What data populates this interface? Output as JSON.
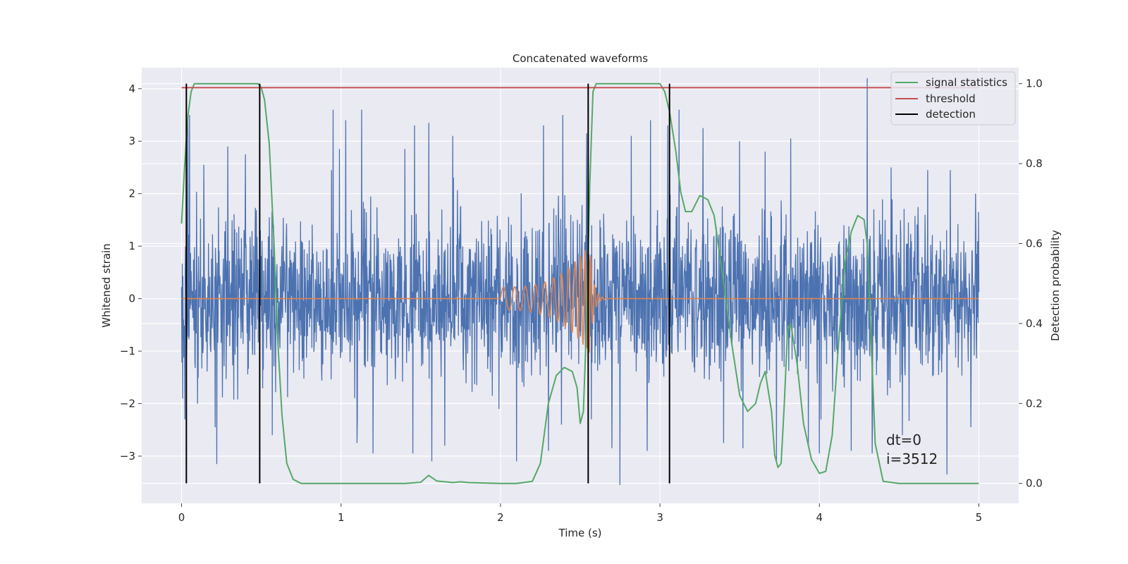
{
  "chart_data": {
    "type": "line",
    "title": "Concatenated waveforms",
    "xlabel": "Time (s)",
    "ylabel": "Whitened strain",
    "y2label": "Detection probability",
    "xlim": [
      -0.25,
      5.25
    ],
    "ylim": [
      -3.9,
      4.4
    ],
    "y2lim": [
      -0.05,
      1.04
    ],
    "xticks": [
      0,
      1,
      2,
      3,
      4,
      5
    ],
    "yticks": [
      -3,
      -2,
      -1,
      0,
      1,
      2,
      3,
      4
    ],
    "y2ticks": [
      0.0,
      0.2,
      0.4,
      0.6,
      0.8,
      1.0
    ],
    "grid": true,
    "legend_position": "top-right",
    "annotation_lines": [
      "dt=0",
      "i=3512"
    ],
    "colors": {
      "noise": "#4c72b0",
      "injection": "#dd8452",
      "signal_statistics": "#55a868",
      "threshold": "#c44e52",
      "detection": "#000000",
      "background": "#eaeaf2"
    },
    "series": [
      {
        "name": "",
        "axis": "left",
        "kind": "noise",
        "x_range": [
          0,
          5
        ],
        "approx_std": 0.75,
        "peak_points": [
          [
            0.04,
            3.45
          ],
          [
            0.05,
            3.5
          ],
          [
            0.14,
            2.55
          ],
          [
            0.29,
            2.9
          ],
          [
            0.4,
            2.75
          ],
          [
            0.94,
            2.45
          ],
          [
            0.95,
            3.6
          ],
          [
            0.99,
            2.85
          ],
          [
            1.03,
            3.4
          ],
          [
            1.13,
            3.6
          ],
          [
            1.4,
            2.85
          ],
          [
            1.46,
            3.3
          ],
          [
            1.55,
            3.35
          ],
          [
            1.7,
            3.1
          ],
          [
            1.99,
            2.8
          ],
          [
            2.27,
            3.3
          ],
          [
            2.39,
            3.5
          ],
          [
            2.54,
            3.15
          ],
          [
            2.82,
            3.1
          ],
          [
            2.94,
            3.4
          ],
          [
            3.05,
            3.3
          ],
          [
            3.12,
            3.6
          ],
          [
            3.27,
            3.25
          ],
          [
            3.5,
            3.0
          ],
          [
            3.66,
            2.8
          ],
          [
            3.82,
            3.05
          ],
          [
            3.93,
            3.2
          ],
          [
            4.3,
            4.2
          ],
          [
            4.45,
            2.5
          ],
          [
            4.68,
            2.45
          ],
          [
            4.82,
            2.45
          ],
          [
            4.98,
            2.0
          ]
        ],
        "trough_points": [
          [
            0.02,
            -2.3
          ],
          [
            0.1,
            -2.0
          ],
          [
            0.21,
            -2.45
          ],
          [
            0.22,
            -3.15
          ],
          [
            0.57,
            -2.6
          ],
          [
            1.1,
            -2.75
          ],
          [
            1.2,
            -2.95
          ],
          [
            1.45,
            -2.95
          ],
          [
            1.57,
            -3.1
          ],
          [
            1.65,
            -2.8
          ],
          [
            1.99,
            -2.1
          ],
          [
            2.1,
            -3.1
          ],
          [
            2.3,
            -2.9
          ],
          [
            2.57,
            -2.3
          ],
          [
            2.7,
            -2.85
          ],
          [
            2.75,
            -3.55
          ],
          [
            2.92,
            -2.9
          ],
          [
            3.4,
            -2.75
          ],
          [
            3.52,
            -2.85
          ],
          [
            3.73,
            -3.1
          ],
          [
            3.93,
            -2.8
          ],
          [
            4.0,
            -2.95
          ],
          [
            4.2,
            -2.9
          ],
          [
            4.33,
            -2.95
          ],
          [
            4.52,
            -2.6
          ],
          [
            4.8,
            -3.35
          ],
          [
            4.95,
            -2.45
          ]
        ]
      },
      {
        "name": "",
        "axis": "left",
        "kind": "chirp",
        "x_range": [
          0,
          5
        ],
        "chirp_start": 2.0,
        "chirp_merger": 2.56,
        "amplitude_start": 0.22,
        "amplitude_peak": 1.05,
        "ringdown_end": 2.98
      },
      {
        "name": "signal statistics",
        "axis": "right",
        "x": [
          0.0,
          0.02,
          0.04,
          0.06,
          0.08,
          0.1,
          0.3,
          0.48,
          0.5,
          0.52,
          0.55,
          0.58,
          0.6,
          0.63,
          0.66,
          0.7,
          0.75,
          0.85,
          1.0,
          1.2,
          1.4,
          1.5,
          1.55,
          1.6,
          1.7,
          1.75,
          1.8,
          2.0,
          2.1,
          2.2,
          2.25,
          2.3,
          2.35,
          2.4,
          2.45,
          2.48,
          2.5,
          2.52,
          2.54,
          2.56,
          2.58,
          2.6,
          2.65,
          2.8,
          2.95,
          3.0,
          3.03,
          3.06,
          3.1,
          3.13,
          3.16,
          3.2,
          3.25,
          3.3,
          3.34,
          3.4,
          3.45,
          3.5,
          3.55,
          3.6,
          3.63,
          3.66,
          3.7,
          3.72,
          3.74,
          3.76,
          3.78,
          3.8,
          3.82,
          3.86,
          3.9,
          3.95,
          4.0,
          4.04,
          4.08,
          4.12,
          4.16,
          4.2,
          4.24,
          4.28,
          4.3,
          4.32,
          4.35,
          4.4,
          4.5,
          4.7,
          5.0
        ],
        "values": [
          0.65,
          0.8,
          0.92,
          0.98,
          1.0,
          1.0,
          1.0,
          1.0,
          0.99,
          0.96,
          0.85,
          0.6,
          0.38,
          0.17,
          0.05,
          0.01,
          0.0,
          0.0,
          0.0,
          0.0,
          0.0,
          0.003,
          0.02,
          0.006,
          0.002,
          0.004,
          0.002,
          0.0,
          0.0,
          0.005,
          0.05,
          0.2,
          0.27,
          0.29,
          0.28,
          0.24,
          0.15,
          0.18,
          0.4,
          0.75,
          0.98,
          1.0,
          1.0,
          1.0,
          1.0,
          1.0,
          0.98,
          0.93,
          0.83,
          0.73,
          0.68,
          0.68,
          0.72,
          0.71,
          0.67,
          0.5,
          0.35,
          0.22,
          0.18,
          0.2,
          0.25,
          0.28,
          0.18,
          0.07,
          0.04,
          0.05,
          0.2,
          0.38,
          0.4,
          0.3,
          0.15,
          0.06,
          0.025,
          0.03,
          0.12,
          0.35,
          0.55,
          0.63,
          0.67,
          0.66,
          0.6,
          0.4,
          0.1,
          0.005,
          0.0,
          0.0,
          0.0
        ]
      },
      {
        "name": "threshold",
        "axis": "right",
        "x": [
          0,
          5
        ],
        "values": [
          0.99,
          0.99
        ]
      },
      {
        "name": "detection",
        "axis": "right",
        "kind": "vlines",
        "x": [
          0.03,
          0.49,
          2.55,
          3.06
        ],
        "ymin": 0.0,
        "ymax": 1.0
      }
    ]
  }
}
